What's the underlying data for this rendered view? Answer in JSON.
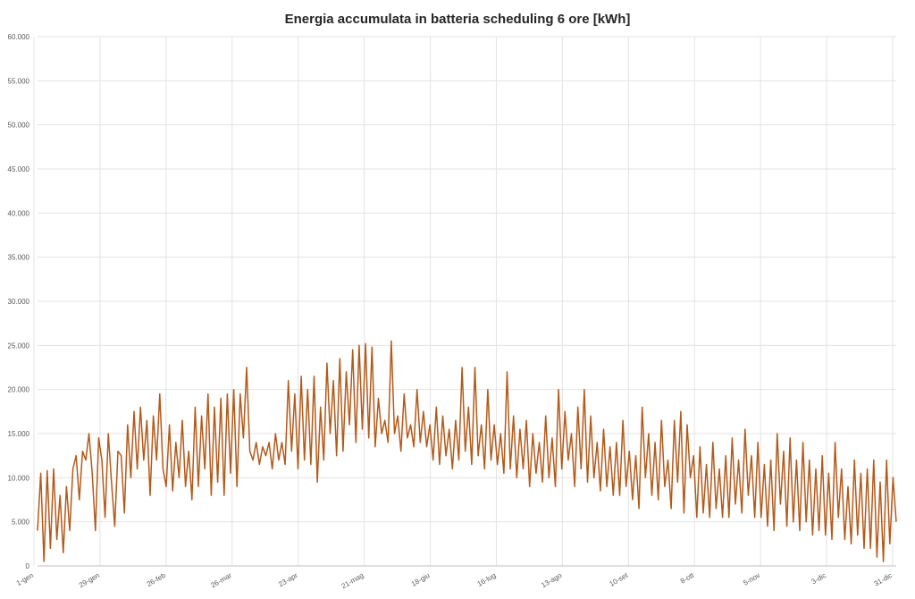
{
  "chart_data": {
    "type": "line",
    "title": "Energia accumulata in batteria scheduling 6 ore [kWh]",
    "xlabel": "",
    "ylabel": "",
    "ylim": [
      0,
      60000
    ],
    "y_ticks": [
      "0",
      "5.000",
      "10.000",
      "15.000",
      "20.000",
      "25.000",
      "30.000",
      "35.000",
      "40.000",
      "45.000",
      "50.000",
      "55.000",
      "60.000"
    ],
    "x_ticks": [
      "1-gen",
      "29-gen",
      "26-feb",
      "26-mar",
      "23-apr",
      "21-mag",
      "18-giu",
      "16-lug",
      "13-ago",
      "10-set",
      "8-ott",
      "5-nov",
      "3-dic",
      "31-dic"
    ],
    "grid": true,
    "legend": "none",
    "line_color": "#b35a1a",
    "series": [
      {
        "values": [
          4000,
          10500,
          500,
          10800,
          2000,
          11000,
          3000,
          8000,
          1500,
          9000,
          4000,
          11000,
          12500,
          7500,
          13000,
          12000,
          15000,
          10500,
          4000,
          14500,
          12000,
          5500,
          15000,
          9500,
          4500,
          13000,
          12500,
          6000,
          16000,
          10000,
          17500,
          11000,
          18000,
          12000,
          16500,
          8000,
          17000,
          12000,
          19500,
          11000,
          9000,
          16000,
          8500,
          14000,
          10000,
          16500,
          9000,
          13000,
          7500,
          18000,
          9000,
          17000,
          11000,
          19500,
          8000,
          18000,
          9500,
          19000,
          8000,
          19500,
          10500,
          20000,
          9000,
          19500,
          14500,
          22500,
          13000,
          12000,
          14000,
          11500,
          13500,
          12500,
          14000,
          11000,
          15000,
          12000,
          14000,
          11500,
          21000,
          13000,
          19500,
          11000,
          21500,
          12000,
          20000,
          11500,
          21500,
          9500,
          18000,
          12000,
          23000,
          15000,
          21000,
          12500,
          23500,
          13000,
          22000,
          16000,
          24500,
          14000,
          25000,
          15500,
          25200,
          14500,
          24800,
          13500,
          19000,
          15000,
          16500,
          14000,
          25500,
          15000,
          17000,
          13000,
          19500,
          14500,
          16000,
          13500,
          20000,
          14000,
          17500,
          13500,
          16000,
          12000,
          18000,
          11500,
          17000,
          12500,
          15500,
          11000,
          16500,
          12000,
          22500,
          13000,
          18000,
          11500,
          22500,
          12500,
          16000,
          11000,
          20000,
          12000,
          16000,
          11500,
          15000,
          10500,
          22000,
          11000,
          17000,
          10000,
          15500,
          11000,
          16500,
          9000,
          15000,
          10500,
          14000,
          9500,
          17000,
          10000,
          14500,
          9000,
          20000,
          11000,
          17500,
          12000,
          15000,
          9000,
          18000,
          11000,
          20000,
          9500,
          17000,
          10000,
          14000,
          8500,
          15500,
          9000,
          13500,
          8000,
          14000,
          8000,
          16500,
          9000,
          13000,
          7500,
          12500,
          6500,
          18000,
          10000,
          15000,
          8000,
          14000,
          7500,
          16500,
          9000,
          12000,
          6500,
          16500,
          9500,
          17500,
          6000,
          16000,
          10000,
          12500,
          5500,
          13500,
          6000,
          11500,
          5500,
          14000,
          6500,
          11000,
          5500,
          12500,
          5500,
          14500,
          7000,
          12000,
          6000,
          15500,
          8000,
          12500,
          5500,
          14000,
          5500,
          11500,
          4500,
          12000,
          4000,
          15000,
          7000,
          13000,
          4500,
          14500,
          5000,
          12000,
          4000,
          14000,
          5000,
          12000,
          3500,
          11000,
          4000,
          12500,
          3500,
          10500,
          3000,
          14000,
          5500,
          11000,
          3000,
          9000,
          2500,
          12000,
          3500,
          10500,
          2000,
          11000,
          2000,
          12000,
          1000,
          9500,
          500,
          12000,
          2500,
          10000,
          5000
        ]
      }
    ]
  }
}
